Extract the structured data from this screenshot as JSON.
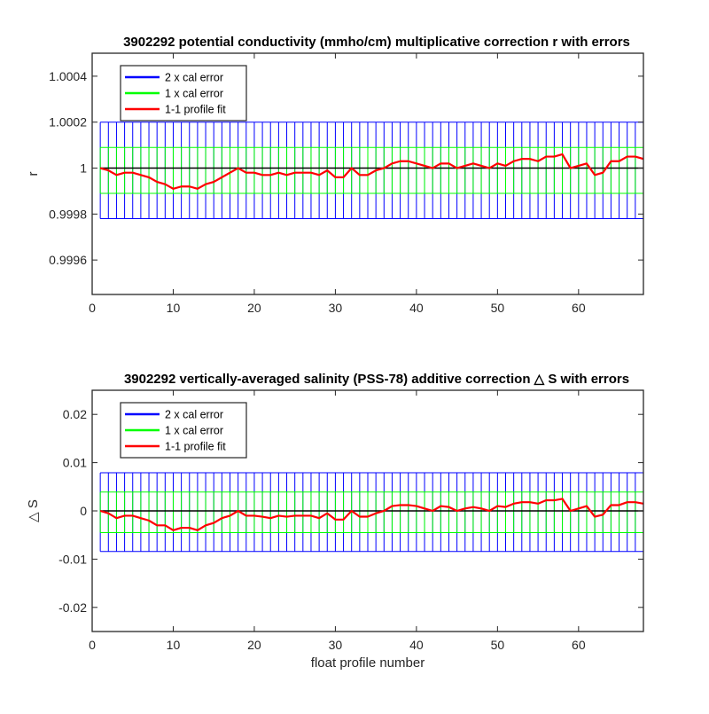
{
  "figure": {
    "xlabel": "float profile number"
  },
  "colors": {
    "two_x_cal_error": "#0000ff",
    "one_x_cal_error": "#00ff00",
    "profile_fit": "#ff0000",
    "reference_line": "#000000"
  },
  "chart_data": [
    {
      "type": "line",
      "title": "3902292 potential conductivity (mmho/cm) multiplicative correction r with errors",
      "xlabel": "",
      "ylabel": "r",
      "xlim": [
        0,
        68
      ],
      "ylim": [
        0.99945,
        1.0005
      ],
      "xticks": [
        0,
        10,
        20,
        30,
        40,
        50,
        60
      ],
      "xtick_labels": [
        "0",
        "10",
        "20",
        "30",
        "40",
        "50",
        "60"
      ],
      "yticks": [
        0.9996,
        0.9998,
        1,
        1.0002,
        1.0004
      ],
      "ytick_labels": [
        "0.9996",
        "0.9998",
        "1",
        "1.0002",
        "1.0004"
      ],
      "grid": false,
      "legend": {
        "placement": "top-left",
        "entries": [
          "2 x cal error",
          "1 x cal error",
          "1-1 profile fit"
        ]
      },
      "reference_y": 1,
      "error_bands": [
        {
          "name": "2 x cal error",
          "lower": 0.99978,
          "upper": 1.0002
        },
        {
          "name": "1 x cal error",
          "lower": 0.99989,
          "upper": 1.00009
        }
      ],
      "series": [
        {
          "name": "1-1 profile fit",
          "x": [
            1,
            2,
            3,
            4,
            5,
            6,
            7,
            8,
            9,
            10,
            11,
            12,
            13,
            14,
            15,
            16,
            17,
            18,
            19,
            20,
            21,
            22,
            23,
            24,
            25,
            26,
            27,
            28,
            29,
            30,
            31,
            32,
            33,
            34,
            35,
            36,
            37,
            38,
            39,
            40,
            41,
            42,
            43,
            44,
            45,
            46,
            47,
            48,
            49,
            50,
            51,
            52,
            53,
            54,
            55,
            56,
            57,
            58,
            59,
            60,
            61,
            62,
            63,
            64,
            65,
            66,
            67,
            68
          ],
          "y": [
            1.0,
            0.99999,
            0.99997,
            0.99998,
            0.99998,
            0.99997,
            0.99996,
            0.99994,
            0.99993,
            0.99991,
            0.99992,
            0.99992,
            0.99991,
            0.99993,
            0.99994,
            0.99996,
            0.99998,
            1.0,
            0.99998,
            0.99998,
            0.99997,
            0.99997,
            0.99998,
            0.99997,
            0.99998,
            0.99998,
            0.99998,
            0.99997,
            0.99999,
            0.99996,
            0.99996,
            1.0,
            0.99997,
            0.99997,
            0.99999,
            1.0,
            1.00002,
            1.00003,
            1.00003,
            1.00002,
            1.00001,
            1.0,
            1.00002,
            1.00002,
            1.0,
            1.00001,
            1.00002,
            1.00001,
            1.0,
            1.00002,
            1.00001,
            1.00003,
            1.00004,
            1.00004,
            1.00003,
            1.00005,
            1.00005,
            1.00006,
            1.0,
            1.00001,
            1.00002,
            0.99997,
            0.99998,
            1.00003,
            1.00003,
            1.00005,
            1.00005,
            1.00004
          ]
        }
      ]
    },
    {
      "type": "line",
      "title": "3902292 vertically-averaged salinity (PSS-78) additive correction △ S with errors",
      "xlabel": "float profile number",
      "ylabel": "△ S",
      "xlim": [
        0,
        68
      ],
      "ylim": [
        -0.025,
        0.025
      ],
      "xticks": [
        0,
        10,
        20,
        30,
        40,
        50,
        60
      ],
      "xtick_labels": [
        "0",
        "10",
        "20",
        "30",
        "40",
        "50",
        "60"
      ],
      "yticks": [
        -0.02,
        -0.01,
        0,
        0.01,
        0.02
      ],
      "ytick_labels": [
        "-0.02",
        "-0.01",
        "0",
        "0.01",
        "0.02"
      ],
      "grid": false,
      "legend": {
        "placement": "top-left",
        "entries": [
          "2 x cal error",
          "1 x cal error",
          "1-1 profile fit"
        ]
      },
      "reference_y": 0,
      "error_bands": [
        {
          "name": "2 x cal error",
          "lower": -0.0084,
          "upper": 0.0079
        },
        {
          "name": "1 x cal error",
          "lower": -0.0045,
          "upper": 0.0039
        }
      ],
      "series": [
        {
          "name": "1-1 profile fit",
          "x": [
            1,
            2,
            3,
            4,
            5,
            6,
            7,
            8,
            9,
            10,
            11,
            12,
            13,
            14,
            15,
            16,
            17,
            18,
            19,
            20,
            21,
            22,
            23,
            24,
            25,
            26,
            27,
            28,
            29,
            30,
            31,
            32,
            33,
            34,
            35,
            36,
            37,
            38,
            39,
            40,
            41,
            42,
            43,
            44,
            45,
            46,
            47,
            48,
            49,
            50,
            51,
            52,
            53,
            54,
            55,
            56,
            57,
            58,
            59,
            60,
            61,
            62,
            63,
            64,
            65,
            66,
            67,
            68
          ],
          "y": [
            0.0,
            -0.0005,
            -0.0015,
            -0.001,
            -0.001,
            -0.0015,
            -0.002,
            -0.003,
            -0.003,
            -0.004,
            -0.0035,
            -0.0035,
            -0.004,
            -0.003,
            -0.0025,
            -0.0015,
            -0.001,
            0.0,
            -0.001,
            -0.001,
            -0.0012,
            -0.0015,
            -0.001,
            -0.0012,
            -0.001,
            -0.001,
            -0.001,
            -0.0015,
            -0.0005,
            -0.0018,
            -0.0018,
            0.0,
            -0.0012,
            -0.0012,
            -0.0005,
            0.0,
            0.001,
            0.0012,
            0.0012,
            0.001,
            0.0005,
            0.0,
            0.001,
            0.0008,
            0.0,
            0.0005,
            0.0008,
            0.0005,
            0.0,
            0.001,
            0.0008,
            0.0015,
            0.0018,
            0.0018,
            0.0015,
            0.0022,
            0.0022,
            0.0025,
            0.0,
            0.0005,
            0.001,
            -0.0012,
            -0.0008,
            0.0012,
            0.0012,
            0.0018,
            0.0018,
            0.0015
          ]
        }
      ]
    }
  ]
}
